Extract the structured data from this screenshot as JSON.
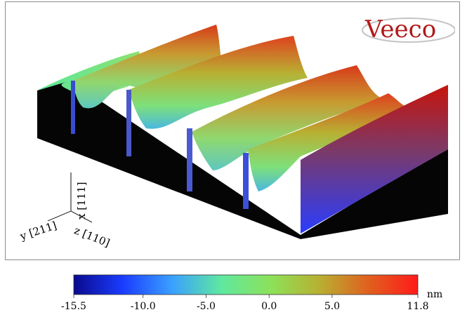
{
  "image": {
    "type": "AFM 3D surface topography rendering",
    "logo_text": "Veeco"
  },
  "axes": {
    "x": "x [111]",
    "y": "y [211]",
    "z": "z [110]"
  },
  "colorbar": {
    "unit": "nm",
    "min": -15.5,
    "max": 11.8,
    "ticks": [
      {
        "value": -15.5,
        "label": "-15.5"
      },
      {
        "value": -10.0,
        "label": "-10.0"
      },
      {
        "value": -5.0,
        "label": "-5.0"
      },
      {
        "value": 0.0,
        "label": "0.0"
      },
      {
        "value": 5.0,
        "label": "5.0"
      },
      {
        "value": 11.8,
        "label": "11.8"
      }
    ],
    "colors": [
      "#0a0a8c",
      "#1a3cff",
      "#3aa0ff",
      "#5fe8a0",
      "#8ce25a",
      "#b8b032",
      "#e0601e",
      "#ff1a1a"
    ]
  }
}
